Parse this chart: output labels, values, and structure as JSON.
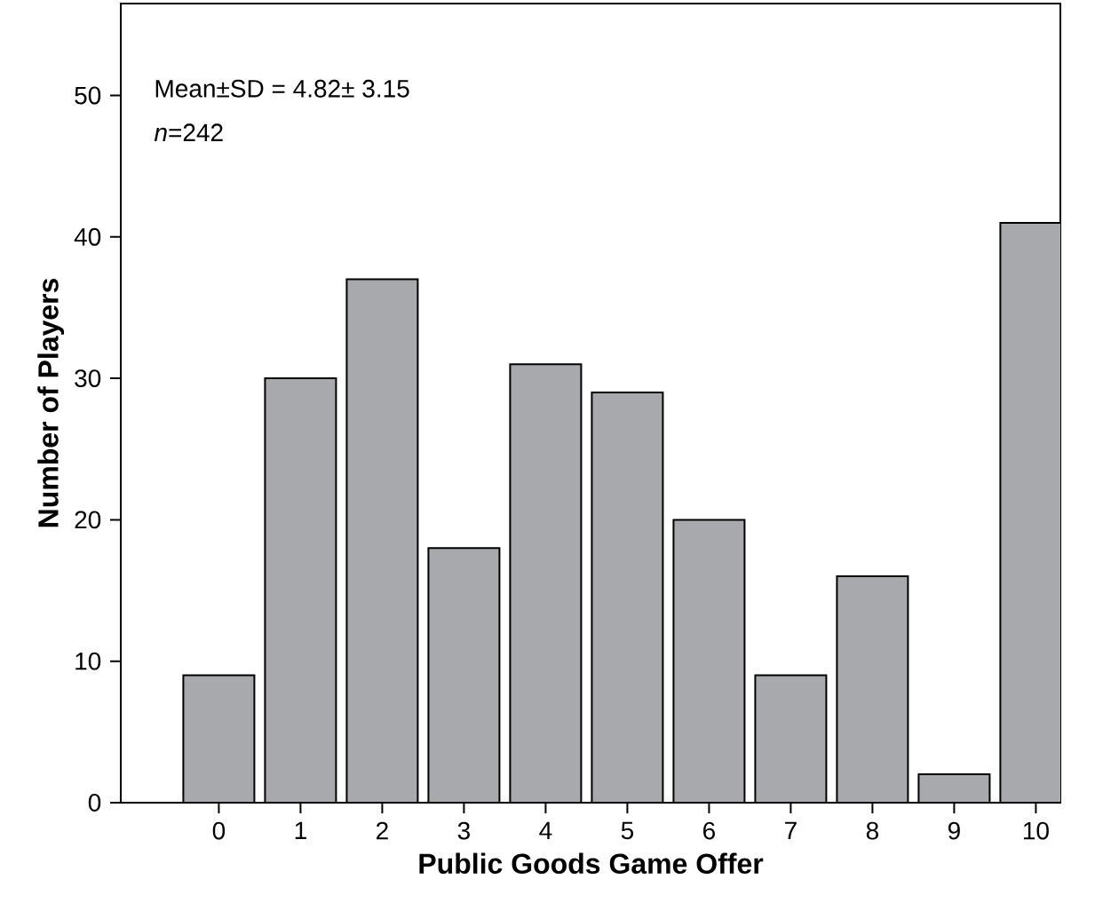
{
  "chart_data": {
    "type": "bar",
    "xlabel": "Public Goods Game Offer",
    "ylabel": "Number of Players",
    "categories": [
      "0",
      "1",
      "2",
      "3",
      "4",
      "5",
      "6",
      "7",
      "8",
      "9",
      "10"
    ],
    "values": [
      9,
      30,
      37,
      18,
      31,
      29,
      20,
      9,
      16,
      2,
      41
    ],
    "color": "#a7a9ac",
    "ylim": [
      0,
      56.5
    ],
    "yticks": [
      0,
      10,
      20,
      30,
      40,
      50
    ],
    "annotations": [
      "Mean±SD = 4.82± 3.15",
      "*n*=242"
    ]
  }
}
